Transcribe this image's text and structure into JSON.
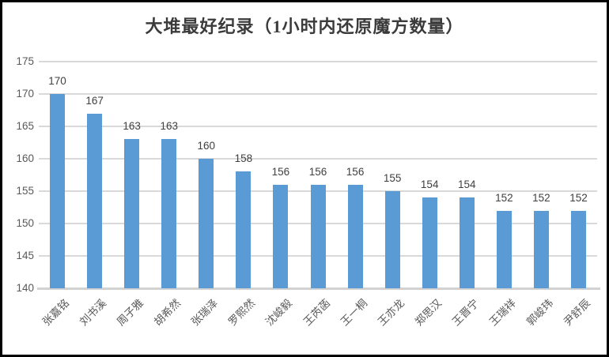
{
  "chart_data": {
    "type": "bar",
    "title": "大堆最好纪录（1小时内还原魔方数量）",
    "categories": [
      "张嘉铭",
      "刘书溪",
      "周子雅",
      "胡希然",
      "张瑞泽",
      "罗熙然",
      "沈峻毅",
      "王芮菡",
      "王一桐",
      "王亦龙",
      "郑思汉",
      "王晋宁",
      "王瑞祥",
      "郭峻玮",
      "尹舒辰"
    ],
    "values": [
      170,
      167,
      163,
      163,
      160,
      158,
      156,
      156,
      156,
      155,
      154,
      154,
      152,
      152,
      152
    ],
    "xlabel": "",
    "ylabel": "",
    "ylim": [
      140,
      175
    ],
    "yticks": [
      140,
      145,
      150,
      155,
      160,
      165,
      170,
      175
    ],
    "grid": true,
    "legend_position": "none",
    "data_labels_shown": true,
    "xtick_rotation_degrees": 45,
    "colors": {
      "bar": "#5B9BD5",
      "gridline": "#D9D9D9",
      "axis_line": "#D2D2D2",
      "title_text": "#3B3B3B",
      "data_label_text": "#404040",
      "tick_label_text": "#595959",
      "frame_border": "#000000",
      "background": "#FFFFFF"
    }
  }
}
